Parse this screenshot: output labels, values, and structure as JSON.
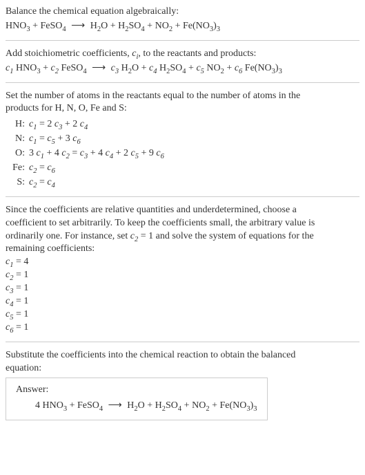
{
  "intro": {
    "line1": "Balance the chemical equation algebraically:"
  },
  "eq1": {
    "hno3": "HNO",
    "hno3_sub": "3",
    "plus1": " + ",
    "feso4": "FeSO",
    "feso4_sub": "4",
    "arrow": "⟶",
    "h2o_a": "H",
    "h2o_s1": "2",
    "h2o_b": "O",
    "plus2": " + ",
    "h2so4_a": "H",
    "h2so4_s1": "2",
    "h2so4_b": "SO",
    "h2so4_s2": "4",
    "plus3": " + ",
    "no2_a": "NO",
    "no2_s": "2",
    "plus4": " + ",
    "feno3_a": "Fe(NO",
    "feno3_s1": "3",
    "feno3_b": ")",
    "feno3_s2": "3"
  },
  "step_coeffs": {
    "line": "Add stoichiometric coefficients, "
  },
  "ci": {
    "c": "c",
    "i": "i"
  },
  "step_coeffs_tail": ", to the reactants and products:",
  "eq2": {
    "c1": "c",
    "c1s": "1",
    "sp1": " ",
    "c2": "c",
    "c2s": "2",
    "sp2": " ",
    "c3": "c",
    "c3s": "3",
    "sp3": " ",
    "c4": "c",
    "c4s": "4",
    "sp4": " ",
    "c5": "c",
    "c5s": "5",
    "sp5": " ",
    "c6": "c",
    "c6s": "6",
    "sp6": " "
  },
  "atoms_intro1": "Set the number of atoms in the reactants equal to the number of atoms in the",
  "atoms_intro2": "products for H, N, O, Fe and S:",
  "atoms": {
    "H_label": "H:",
    "H_eq_a": "c",
    "H_eq_as": "1",
    "H_eq_mid": " = 2 ",
    "H_eq_b": "c",
    "H_eq_bs": "3",
    "H_eq_mid2": " + 2 ",
    "H_eq_c": "c",
    "H_eq_cs": "4",
    "N_label": "N:",
    "N_eq_a": "c",
    "N_eq_as": "1",
    "N_eq_mid": " = ",
    "N_eq_b": "c",
    "N_eq_bs": "5",
    "N_eq_mid2": " + 3 ",
    "N_eq_c": "c",
    "N_eq_cs": "6",
    "O_label": "O:",
    "O_eq_pre": "3 ",
    "O_eq_a": "c",
    "O_eq_as": "1",
    "O_eq_mid1": " + 4 ",
    "O_eq_b": "c",
    "O_eq_bs": "2",
    "O_eq_mid2": " = ",
    "O_eq_c": "c",
    "O_eq_cs": "3",
    "O_eq_mid3": " + 4 ",
    "O_eq_d": "c",
    "O_eq_ds": "4",
    "O_eq_mid4": " + 2 ",
    "O_eq_e": "c",
    "O_eq_es": "5",
    "O_eq_mid5": " + 9 ",
    "O_eq_f": "c",
    "O_eq_fs": "6",
    "Fe_label": "Fe:",
    "Fe_eq_a": "c",
    "Fe_eq_as": "2",
    "Fe_eq_mid": " = ",
    "Fe_eq_b": "c",
    "Fe_eq_bs": "6",
    "S_label": "S:",
    "S_eq_a": "c",
    "S_eq_as": "2",
    "S_eq_mid": " = ",
    "S_eq_b": "c",
    "S_eq_bs": "4"
  },
  "para2_l1": "Since the coefficients are relative quantities and underdetermined, choose a",
  "para2_l2": "coefficient to set arbitrarily. To keep the coefficients small, the arbitrary value is",
  "para2_l3a": "ordinarily one. For instance, set ",
  "para2_c2": "c",
  "para2_c2s": "2",
  "para2_l3b": " = 1 and solve the system of equations for the",
  "para2_l4": "remaining coefficients:",
  "solved": {
    "r1a": "c",
    "r1s": "1",
    "r1b": " = 4",
    "r2a": "c",
    "r2s": "2",
    "r2b": " = 1",
    "r3a": "c",
    "r3s": "3",
    "r3b": " = 1",
    "r4a": "c",
    "r4s": "4",
    "r4b": " = 1",
    "r5a": "c",
    "r5s": "5",
    "r5b": " = 1",
    "r6a": "c",
    "r6s": "6",
    "r6b": " = 1"
  },
  "para3_l1": "Substitute the coefficients into the chemical reaction to obtain the balanced",
  "para3_l2": "equation:",
  "answer": {
    "label": "Answer:",
    "pre": "4 "
  }
}
